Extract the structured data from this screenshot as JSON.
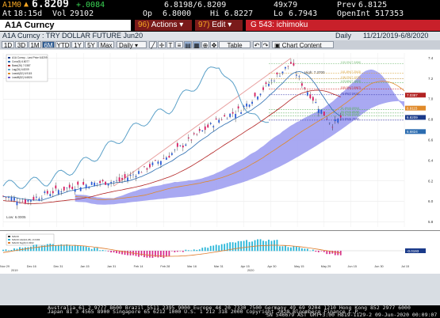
{
  "quote": {
    "ticker": "A1M0",
    "last": "6.8209",
    "change": "+.0084",
    "bid_ask": "6.8198/6.8209",
    "size": "49x79",
    "prev_label": "Prev",
    "prev": "6.8125",
    "time_label": "At",
    "time": "18:15d",
    "vol_label": "Vol",
    "vol": "29102",
    "op_label": "Op",
    "op": "6.8000",
    "hi_label": "Hi",
    "hi": "6.8227",
    "lo_label": "Lo",
    "lo": "6.7943",
    "oi_label": "OpenInt",
    "oi": "517353"
  },
  "toolbar": {
    "security": "A1A Curncy",
    "actions_num": "96)",
    "actions_label": "Actions",
    "edit_num": "97)",
    "edit_label": "Edit",
    "function_label": "G 543: ichimoku"
  },
  "window": {
    "title": "A1A Curncy : TRY DOLLAR FUTURE Jun20",
    "period": "Daily",
    "date_range": "11/21/2019-6/8/2020"
  },
  "periods": [
    "1D",
    "3D",
    "1M",
    "6M",
    "YTD",
    "1Y",
    "5Y",
    "Max"
  ],
  "selected_period": "6M",
  "controls": {
    "frequency": "Daily",
    "table": "Table",
    "chart_content": "Chart Content"
  },
  "legend": [
    {
      "label": "A1A Curncy - Last Price 6.8209",
      "color": "#1a3a8a"
    },
    {
      "label": "Conv(9) 6.8077",
      "color": "#2b6cb0"
    },
    {
      "label": "Base(26) 7.0387",
      "color": "#b22222"
    },
    {
      "label": "Lag(26) 6.8209",
      "color": "#5aa0c8"
    },
    {
      "label": "LeadA(52) 6.9115",
      "color": "#e08a2a"
    },
    {
      "label": "LeadB(52) 6.6824",
      "color": "#6a5acd"
    }
  ],
  "fib_labels": [
    "100.0%(7.3456)",
    "161.8%(7.2543)",
    "138.2%(7.1972)",
    "123.6%(7.1603)",
    "100.0%(7.0967)",
    "76.4%(7.0418)",
    "61.8%(6.8994)",
    "50.0%(6.8638)",
    "38.2%(6.8340)",
    "23.6%(6.7940)"
  ],
  "price_tags": [
    {
      "value": "7.0387",
      "color": "#b22222"
    },
    {
      "value": "6.9115",
      "color": "#e08a2a"
    },
    {
      "value": "6.8209",
      "color": "#1a3a8a"
    },
    {
      "value": "6.6824",
      "color": "#2b6cb0"
    }
  ],
  "low_annotation": "Low: 6.0005",
  "high_annotation": "High: 7.3700",
  "lower_legend": [
    {
      "label": "MACD",
      "color": "#333"
    },
    {
      "label": "MACD Hist(12,26) -0.0193",
      "color": "#29b6d8"
    },
    {
      "label": "MACD Sig(9) 0.0302",
      "color": "#e07b2a"
    }
  ],
  "lower_tag": "-0.0193",
  "x_ticks": [
    "Nov 29",
    "Dec 16",
    "Dec 31",
    "Jan 15",
    "Jan 31",
    "Feb 14",
    "Feb 28",
    "Mar 16",
    "Mar 31",
    "Apr 15",
    "Apr 30",
    "May 15",
    "May 29",
    "Jun 15",
    "Jun 30",
    "Jul 15"
  ],
  "x_year_2019": "2019",
  "x_year_2020": "2020",
  "y_ticks": [
    "7.4",
    "7.2",
    "7.0",
    "6.8",
    "6.6",
    "6.4",
    "6.2",
    "6.0",
    "5.8"
  ],
  "chart_data": {
    "type": "candlestick",
    "title": "A1A Curncy : TRY DOLLAR FUTURE Jun20",
    "x_range": [
      "Nov 21 2019",
      "Jun 8 2020"
    ],
    "ylim": [
      5.75,
      7.45
    ],
    "series": [
      {
        "name": "A1A Curncy - Last Price",
        "last": 6.8209
      },
      {
        "name": "Conv(9)",
        "last": 6.8077
      },
      {
        "name": "Base(26)",
        "last": 7.0387
      },
      {
        "name": "Lag(26)",
        "last": 6.8209
      },
      {
        "name": "LeadA(52)",
        "last": 6.9115
      },
      {
        "name": "LeadB(52)",
        "last": 6.6824
      }
    ],
    "low": 6.0005,
    "high": 7.37,
    "indicator": {
      "name": "MACD",
      "hist": -0.0193,
      "signal": 0.0302
    }
  },
  "footer": {
    "line1": "Australia 61 2 9777 8600 Brazil 5511 2395 9000 Europe 44 20 7330 7500 Germany 49 69 9204 1210 Hong Kong 852 2977 6000",
    "line2": "Japan 81 3 4565 8900         Singapore 65 6212 1000        U.S. 1 212 318 2000           Copyright 2020 Bloomberg Finance L.P.",
    "line3": "SN 546679 AST  GMT+3:00 H819-1129-2 09-Jun-2020 00:09:07"
  }
}
